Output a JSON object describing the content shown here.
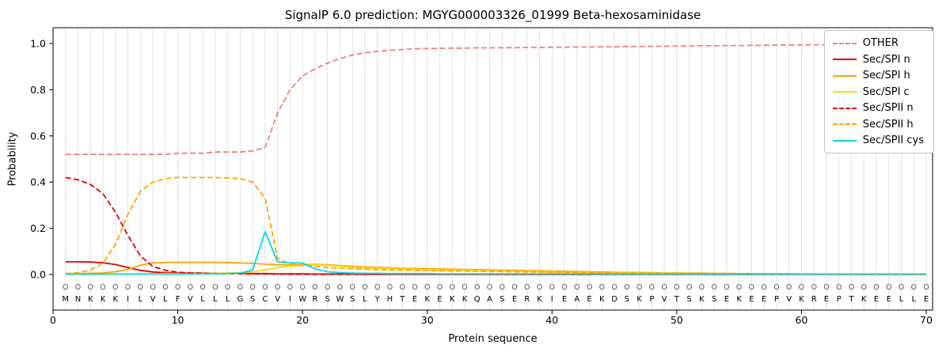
{
  "chart_data": {
    "type": "line",
    "title": "SignalP 6.0 prediction: MGYG000003326_01999 Beta-hexosaminidase",
    "xlabel": "Protein sequence",
    "ylabel": "Probability",
    "x_ticks": [
      0,
      10,
      20,
      30,
      40,
      50,
      60,
      70
    ],
    "y_ticks": [
      0.0,
      0.2,
      0.4,
      0.6,
      0.8,
      1.0
    ],
    "ylim": [
      0,
      1.0
    ],
    "xlim": [
      0,
      70.5
    ],
    "x_start": 1,
    "x_step": 1,
    "grid": "vertical gridline at every residue position",
    "legend_position": "upper right",
    "sequence": "MNKKKILVLFVLLLGSCVIWRSWSLYHTEKEKKQASERKIEAEKDSKPVTSKSEKEEPVKREPTKEELLE",
    "per_position_label_char": "O",
    "series": [
      {
        "name": "OTHER",
        "color": "#f08080",
        "dash": true,
        "values": [
          0.52,
          0.52,
          0.52,
          0.52,
          0.52,
          0.52,
          0.52,
          0.52,
          0.52,
          0.525,
          0.525,
          0.525,
          0.53,
          0.53,
          0.53,
          0.535,
          0.55,
          0.7,
          0.8,
          0.86,
          0.89,
          0.915,
          0.935,
          0.95,
          0.96,
          0.966,
          0.971,
          0.974,
          0.977,
          0.978,
          0.979,
          0.98,
          0.98,
          0.981,
          0.981,
          0.982,
          0.982,
          0.983,
          0.983,
          0.984,
          0.984,
          0.985,
          0.985,
          0.986,
          0.986,
          0.987,
          0.987,
          0.988,
          0.988,
          0.989,
          0.989,
          0.99,
          0.99,
          0.991,
          0.991,
          0.992,
          0.992,
          0.993,
          0.994,
          0.994,
          0.995,
          0.995,
          0.996,
          0.996,
          0.997,
          0.997,
          0.998,
          0.998,
          0.999,
          1.0
        ]
      },
      {
        "name": "Sec/SPI n",
        "color": "#e50000",
        "dash": false,
        "values": [
          0.055,
          0.055,
          0.054,
          0.051,
          0.043,
          0.03,
          0.018,
          0.011,
          0.008,
          0.007,
          0.006,
          0.006,
          0.005,
          0.005,
          0.005,
          0.004,
          0.004,
          0.003,
          0.003,
          0.003,
          0.002,
          0.002,
          0.002,
          0.002,
          0.001,
          0.001,
          0.001,
          0.001,
          0.001,
          0.001,
          0.001,
          0.001,
          0.001,
          0.001,
          0.001,
          0.001,
          0.001,
          0.001,
          0.001,
          0.001,
          0.001,
          0.001,
          0.001,
          0.001,
          0.001,
          0.001,
          0.001,
          0.001,
          0.001,
          0.001,
          0.001,
          0.001,
          0.001,
          0.001,
          0.001,
          0.001,
          0.001,
          0.001,
          0.001,
          0.001,
          0.001,
          0.001,
          0.001,
          0.001,
          0.001,
          0.001,
          0.001,
          0.001,
          0.001,
          0.001
        ]
      },
      {
        "name": "Sec/SPI h",
        "color": "#ffa500",
        "dash": false,
        "values": [
          0.003,
          0.004,
          0.005,
          0.007,
          0.012,
          0.022,
          0.04,
          0.05,
          0.052,
          0.053,
          0.053,
          0.053,
          0.053,
          0.052,
          0.05,
          0.048,
          0.045,
          0.042,
          0.041,
          0.043,
          0.044,
          0.042,
          0.039,
          0.036,
          0.033,
          0.031,
          0.029,
          0.027,
          0.026,
          0.025,
          0.024,
          0.023,
          0.022,
          0.021,
          0.02,
          0.019,
          0.018,
          0.017,
          0.016,
          0.015,
          0.014,
          0.013,
          0.012,
          0.011,
          0.01,
          0.009,
          0.009,
          0.008,
          0.007,
          0.007,
          0.006,
          0.006,
          0.005,
          0.005,
          0.004,
          0.004,
          0.003,
          0.003,
          0.003,
          0.002,
          0.002,
          0.002,
          0.002,
          0.001,
          0.001,
          0.001,
          0.001,
          0.001,
          0.001,
          0.001
        ]
      },
      {
        "name": "Sec/SPI c",
        "color": "#ffd700",
        "dash": false,
        "values": [
          0.001,
          0.001,
          0.001,
          0.001,
          0.002,
          0.002,
          0.003,
          0.003,
          0.004,
          0.004,
          0.004,
          0.005,
          0.005,
          0.006,
          0.008,
          0.012,
          0.02,
          0.03,
          0.036,
          0.04,
          0.042,
          0.04,
          0.036,
          0.032,
          0.029,
          0.027,
          0.025,
          0.023,
          0.022,
          0.021,
          0.02,
          0.019,
          0.018,
          0.017,
          0.016,
          0.015,
          0.014,
          0.013,
          0.012,
          0.011,
          0.01,
          0.01,
          0.009,
          0.008,
          0.008,
          0.007,
          0.007,
          0.006,
          0.006,
          0.005,
          0.005,
          0.004,
          0.004,
          0.004,
          0.003,
          0.003,
          0.003,
          0.002,
          0.002,
          0.002,
          0.002,
          0.001,
          0.001,
          0.001,
          0.001,
          0.001,
          0.001,
          0.001,
          0.001,
          0.001
        ]
      },
      {
        "name": "Sec/SPII n",
        "color": "#e50000",
        "dash": true,
        "values": [
          0.42,
          0.41,
          0.39,
          0.35,
          0.27,
          0.17,
          0.08,
          0.035,
          0.018,
          0.01,
          0.007,
          0.005,
          0.004,
          0.003,
          0.003,
          0.002,
          0.002,
          0.002,
          0.001,
          0.001,
          0.001,
          0.001,
          0.001,
          0.001,
          0.001,
          0.001,
          0.001,
          0.001,
          0.001,
          0.001,
          0.001,
          0.001,
          0.001,
          0.001,
          0.001,
          0.001,
          0.001,
          0.001,
          0.001,
          0.001,
          0.001,
          0.001,
          0.001,
          0.001,
          0.001,
          0.001,
          0.001,
          0.001,
          0.001,
          0.001,
          0.001,
          0.001,
          0.001,
          0.001,
          0.001,
          0.001,
          0.001,
          0.001,
          0.001,
          0.001,
          0.001,
          0.001,
          0.001,
          0.001,
          0.001,
          0.001,
          0.001,
          0.001,
          0.001,
          0.001
        ]
      },
      {
        "name": "Sec/SPII h",
        "color": "#ffa500",
        "dash": true,
        "values": [
          0.004,
          0.008,
          0.02,
          0.05,
          0.13,
          0.26,
          0.36,
          0.4,
          0.415,
          0.42,
          0.42,
          0.42,
          0.42,
          0.418,
          0.415,
          0.4,
          0.33,
          0.07,
          0.045,
          0.04,
          0.035,
          0.03,
          0.027,
          0.025,
          0.023,
          0.021,
          0.02,
          0.019,
          0.018,
          0.017,
          0.016,
          0.015,
          0.015,
          0.014,
          0.013,
          0.013,
          0.012,
          0.011,
          0.011,
          0.01,
          0.009,
          0.009,
          0.008,
          0.008,
          0.007,
          0.007,
          0.006,
          0.006,
          0.005,
          0.005,
          0.004,
          0.004,
          0.004,
          0.003,
          0.003,
          0.003,
          0.002,
          0.002,
          0.002,
          0.002,
          0.002,
          0.001,
          0.001,
          0.001,
          0.001,
          0.001,
          0.001,
          0.001,
          0.001,
          0.001
        ]
      },
      {
        "name": "Sec/SPII cys",
        "color": "#00dce0",
        "dash": false,
        "values": [
          0.002,
          0.002,
          0.002,
          0.002,
          0.002,
          0.002,
          0.002,
          0.002,
          0.002,
          0.002,
          0.002,
          0.003,
          0.003,
          0.004,
          0.006,
          0.02,
          0.185,
          0.055,
          0.05,
          0.05,
          0.025,
          0.012,
          0.008,
          0.006,
          0.005,
          0.005,
          0.004,
          0.004,
          0.004,
          0.004,
          0.003,
          0.003,
          0.003,
          0.003,
          0.003,
          0.003,
          0.003,
          0.003,
          0.003,
          0.003,
          0.003,
          0.003,
          0.003,
          0.002,
          0.002,
          0.002,
          0.002,
          0.002,
          0.002,
          0.002,
          0.002,
          0.002,
          0.002,
          0.002,
          0.002,
          0.002,
          0.002,
          0.002,
          0.002,
          0.002,
          0.002,
          0.002,
          0.002,
          0.002,
          0.002,
          0.002,
          0.002,
          0.002,
          0.002,
          0.002
        ]
      }
    ]
  },
  "colors": {
    "grid": "#dcdcdc",
    "axis": "#000000",
    "sequence_text": "#000000",
    "position_label_text": "#555555",
    "legend_border": "#c4c4c4",
    "background": "#ffffff"
  }
}
